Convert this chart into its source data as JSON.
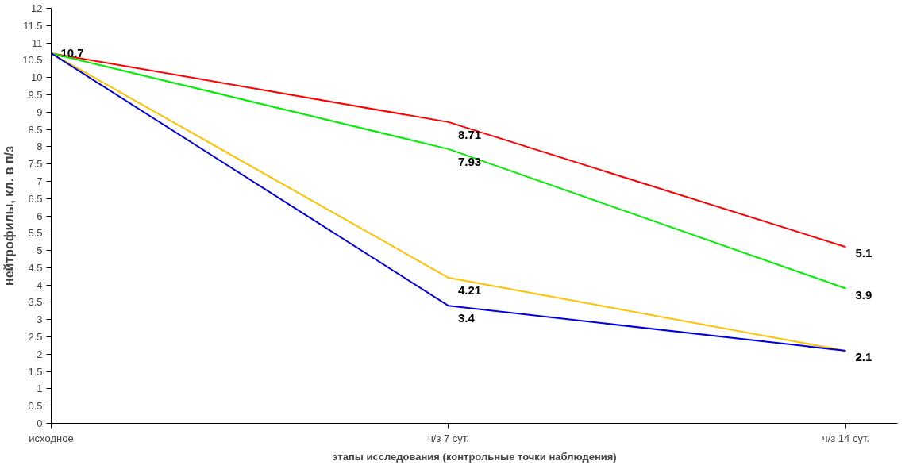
{
  "chart_data": {
    "type": "line",
    "xlabel": "этапы исследования (контрольные точки наблюдения)",
    "ylabel": "нейтрофилы, кл. в п/з",
    "categories": [
      "исходное",
      "ч/з 7 сут.",
      "ч/з 14 сут."
    ],
    "ylim": [
      0,
      12
    ],
    "yticks": [
      0,
      0.5,
      1,
      1.5,
      2,
      2.5,
      3,
      3.5,
      4,
      4.5,
      5,
      5.5,
      6,
      6.5,
      7,
      7.5,
      8,
      8.5,
      9,
      9.5,
      10,
      10.5,
      11,
      11.5,
      12
    ],
    "grid": false,
    "marker": "none",
    "line_style": "solid",
    "series": [
      {
        "color": "#ff0000",
        "values": [
          10.7,
          8.71,
          5.1
        ],
        "value_labels": [
          "10.7",
          "8.71",
          "5.1"
        ]
      },
      {
        "color": "#00ee00",
        "values": [
          10.7,
          7.93,
          3.9
        ],
        "value_labels": [
          null,
          "7.93",
          "3.9"
        ]
      },
      {
        "color": "#ffc000",
        "values": [
          10.7,
          4.21,
          2.1
        ],
        "value_labels": [
          null,
          "4.21",
          "2.1"
        ]
      },
      {
        "color": "#0000dd",
        "values": [
          10.7,
          3.4,
          2.1
        ],
        "value_labels": [
          null,
          "3.4",
          null
        ]
      }
    ]
  }
}
